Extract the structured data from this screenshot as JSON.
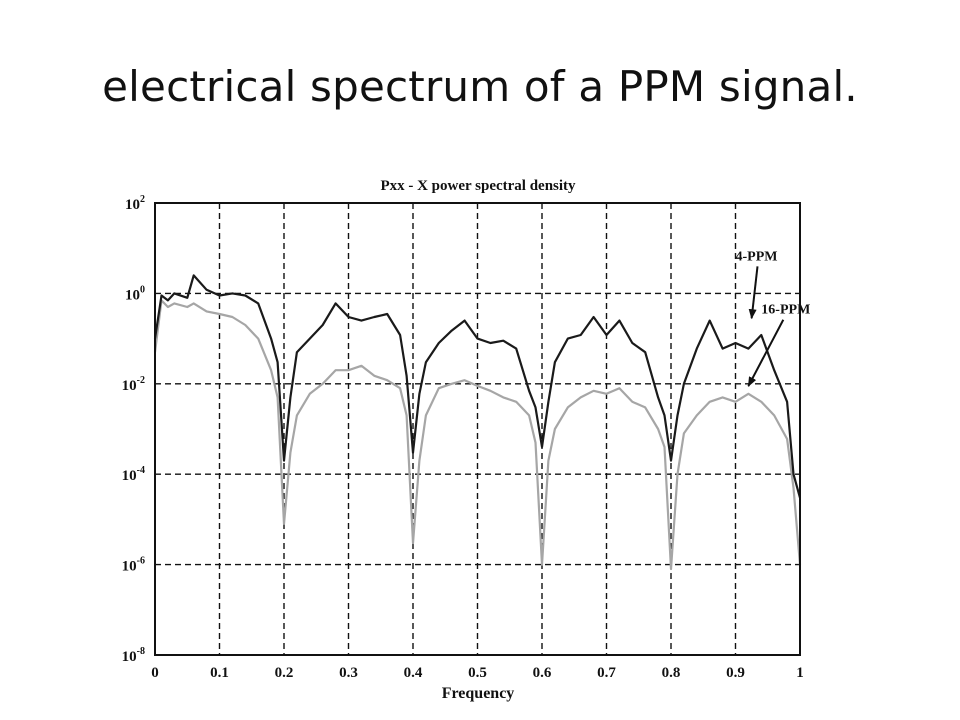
{
  "slide": {
    "title": "electrical spectrum of a PPM signal."
  },
  "chart_data": {
    "type": "line",
    "title": "Pxx - X power spectral density",
    "xlabel": "Frequency",
    "ylabel": "",
    "xlim": [
      0,
      1
    ],
    "ylim_exponent": [
      -8,
      2
    ],
    "yscale": "log",
    "grid": true,
    "x_ticks": [
      "0",
      "0.1",
      "0.2",
      "0.3",
      "0.4",
      "0.5",
      "0.6",
      "0.7",
      "0.8",
      "0.9",
      "1"
    ],
    "y_tick_base": "10",
    "y_tick_exponents": [
      "2",
      "0",
      "-2",
      "-4",
      "-6",
      "-8"
    ],
    "x": [
      0,
      0.01,
      0.02,
      0.03,
      0.05,
      0.06,
      0.08,
      0.1,
      0.12,
      0.14,
      0.16,
      0.18,
      0.19,
      0.2,
      0.21,
      0.22,
      0.24,
      0.26,
      0.28,
      0.3,
      0.32,
      0.34,
      0.36,
      0.38,
      0.39,
      0.4,
      0.41,
      0.42,
      0.44,
      0.46,
      0.48,
      0.5,
      0.52,
      0.54,
      0.56,
      0.58,
      0.59,
      0.6,
      0.61,
      0.62,
      0.64,
      0.66,
      0.68,
      0.7,
      0.72,
      0.74,
      0.76,
      0.78,
      0.79,
      0.8,
      0.81,
      0.82,
      0.84,
      0.86,
      0.88,
      0.9,
      0.92,
      0.94,
      0.96,
      0.98,
      0.99,
      1.0
    ],
    "series": [
      {
        "name": "4-PPM",
        "color": "#1a1a1a",
        "values": [
          0.1,
          0.9,
          0.7,
          1.0,
          0.8,
          2.5,
          1.2,
          0.9,
          1.0,
          0.9,
          0.6,
          0.1,
          0.03,
          0.0002,
          0.005,
          0.05,
          0.1,
          0.2,
          0.6,
          0.3,
          0.25,
          0.3,
          0.35,
          0.12,
          0.015,
          0.0003,
          0.006,
          0.03,
          0.08,
          0.15,
          0.25,
          0.1,
          0.08,
          0.09,
          0.06,
          0.007,
          0.003,
          0.0004,
          0.004,
          0.03,
          0.1,
          0.12,
          0.3,
          0.12,
          0.25,
          0.08,
          0.05,
          0.005,
          0.002,
          0.0002,
          0.002,
          0.01,
          0.06,
          0.25,
          0.06,
          0.08,
          0.06,
          0.12,
          0.02,
          0.004,
          0.0001,
          3e-05
        ]
      },
      {
        "name": "16-PPM",
        "color": "#a6a6a6",
        "values": [
          0.05,
          0.7,
          0.5,
          0.6,
          0.5,
          0.6,
          0.4,
          0.35,
          0.3,
          0.2,
          0.1,
          0.02,
          0.005,
          8e-06,
          0.0003,
          0.002,
          0.006,
          0.01,
          0.02,
          0.02,
          0.025,
          0.015,
          0.012,
          0.008,
          0.002,
          3e-06,
          0.0002,
          0.002,
          0.008,
          0.01,
          0.012,
          0.009,
          0.007,
          0.005,
          0.004,
          0.002,
          0.0005,
          1e-06,
          0.0002,
          0.001,
          0.003,
          0.005,
          0.007,
          0.006,
          0.008,
          0.004,
          0.003,
          0.001,
          0.0004,
          8e-07,
          0.0001,
          0.0008,
          0.002,
          0.004,
          0.005,
          0.004,
          0.006,
          0.004,
          0.002,
          0.0006,
          5e-05,
          1e-06
        ]
      }
    ],
    "annotations": [
      {
        "text": "4-PPM",
        "x_text": 0.9,
        "y_text_exp": 0.73,
        "x_point": 0.925,
        "y_point_exp": -0.55
      },
      {
        "text": "16-PPM",
        "x_text": 0.94,
        "y_text_exp": -0.45,
        "x_point": 0.92,
        "y_point_exp": -2.05
      }
    ]
  }
}
